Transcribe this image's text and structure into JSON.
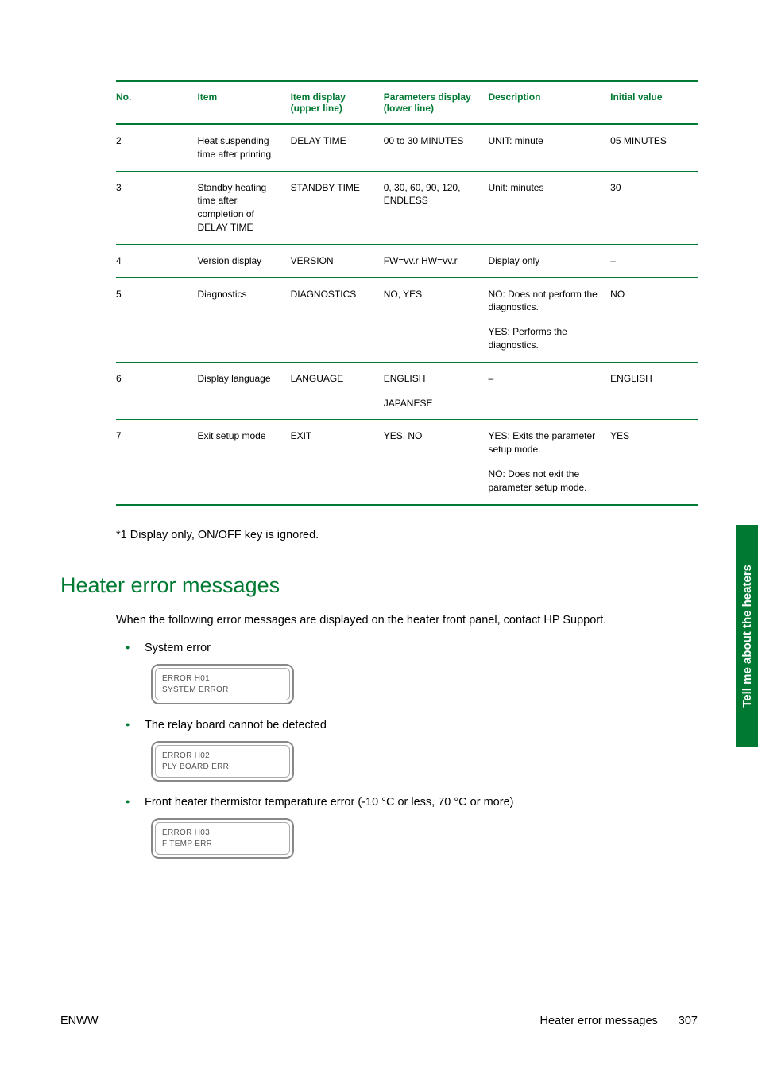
{
  "colors": {
    "brand": "#007a33",
    "text": "#000000",
    "lcd_border": "#888888",
    "lcd_text": "#555555",
    "background": "#ffffff",
    "white": "#ffffff"
  },
  "typography": {
    "body_fontsize_pt": 11,
    "table_fontsize_pt": 9,
    "h2_fontsize_pt": 20,
    "lcd_fontsize_pt": 8,
    "font_family": "Arial"
  },
  "table": {
    "headers": {
      "no": "No.",
      "item": "Item",
      "item_display": "Item display (upper line)",
      "parameters": "Parameters display (lower line)",
      "description": "Description",
      "initial": "Initial value"
    },
    "rows": [
      {
        "no": "2",
        "item": "Heat suspending time after printing",
        "item_display": "DELAY TIME",
        "parameters": "00 to 30 MINUTES",
        "description": [
          "UNIT: minute"
        ],
        "initial": "05 MINUTES"
      },
      {
        "no": "3",
        "item": "Standby heating time after completion of DELAY TIME",
        "item_display": "STANDBY TIME",
        "parameters": "0, 30, 60, 90, 120, ENDLESS",
        "description": [
          "Unit: minutes"
        ],
        "initial": "30"
      },
      {
        "no": "4",
        "item": "Version display",
        "item_display": "VERSION",
        "parameters": "FW=vv.r HW=vv.r",
        "description": [
          "Display only"
        ],
        "initial": "–"
      },
      {
        "no": "5",
        "item": "Diagnostics",
        "item_display": "DIAGNOSTICS",
        "parameters": "NO, YES",
        "description": [
          "NO: Does not perform the diagnostics.",
          "YES: Performs the diagnostics."
        ],
        "initial": "NO"
      },
      {
        "no": "6",
        "item": "Display language",
        "item_display": "LANGUAGE",
        "parameters": "ENGLISH\nJAPANESE",
        "description": [
          "–"
        ],
        "initial": "ENGLISH"
      },
      {
        "no": "7",
        "item": "Exit setup mode",
        "item_display": "EXIT",
        "parameters": "YES, NO",
        "description": [
          "YES: Exits the parameter setup mode.",
          "NO: Does not exit the parameter setup mode."
        ],
        "initial": "YES"
      }
    ]
  },
  "note": "*1 Display only, ON/OFF key is ignored.",
  "section": {
    "title": "Heater error messages",
    "intro": "When the following error messages are displayed on the heater front panel, contact HP Support.",
    "errors": [
      {
        "label": "System error",
        "lcd_line1": "ERROR H01",
        "lcd_line2": "SYSTEM ERROR"
      },
      {
        "label": "The relay board cannot be detected",
        "lcd_line1": "ERROR H02",
        "lcd_line2": "PLY BOARD ERR"
      },
      {
        "label": "Front heater thermistor temperature error (-10 °C or less, 70 °C or more)",
        "lcd_line1": "ERROR H03",
        "lcd_line2": "F TEMP ERR"
      }
    ]
  },
  "side_tab": "Tell me about the heaters",
  "footer": {
    "left": "ENWW",
    "right_label": "Heater error messages",
    "page_no": "307"
  }
}
